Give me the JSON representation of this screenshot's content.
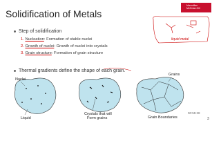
{
  "header": {
    "title": "Solidification of Metals",
    "logo": [
      "Macmillan",
      "McGraw-Hill"
    ]
  },
  "bullets": [
    {
      "text": "Step of solidification",
      "steps": [
        {
          "number": "1.",
          "term": "Nucleation",
          "description": ": Formation of stable nuclei"
        },
        {
          "number": "2.",
          "term": "Growth of nuclei",
          "description": ": Growth of nuclei into crystals"
        },
        {
          "number": "3.",
          "term": "Grain structure",
          "description": ": Formation of grain structure"
        }
      ]
    },
    {
      "text": "Thermal gradients define the shape of each grain."
    }
  ],
  "figures": [
    {
      "labels": [
        "Nuclei",
        "Liquid"
      ]
    },
    {
      "labels": [
        "Crystals that will",
        "Form grains"
      ]
    },
    {
      "labels": [
        "Grains",
        "Grain Boundaries"
      ]
    }
  ],
  "annotation": "liquid metal",
  "video_time": "00:55:28",
  "page_number": "3"
}
